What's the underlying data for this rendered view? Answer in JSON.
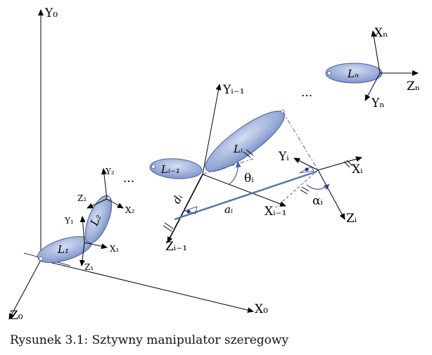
{
  "caption": "Rysunek 3.1: Sztywny manipulator szeregowy",
  "colors": {
    "link_fill": "#8ea4d6",
    "link_stroke": "#4a5f9a",
    "joint_axis": "#5a75a8",
    "dashed": "#4a5fa8",
    "marker": "#1f2f9a"
  },
  "labels": {
    "base": {
      "y": "Y₀",
      "x": "X₀",
      "z": "Z₀"
    },
    "frame1": {
      "y": "Y₁",
      "x": "X₁",
      "z": "Z₁",
      "link": "L₁"
    },
    "frame2": {
      "y": "Y₂",
      "x": "X₂",
      "z": "Z₂",
      "link": "L₂"
    },
    "prev": {
      "y": "Yᵢ₋₁",
      "x": "Xᵢ₋₁",
      "z": "Zᵢ₋₁",
      "link": "Lᵢ₋₁"
    },
    "curr": {
      "y": "Yᵢ",
      "x": "Xᵢ",
      "z": "Zᵢ",
      "link": "Lᵢ"
    },
    "last": {
      "y": "Yₙ",
      "x": "Xₙ",
      "z": "Zₙ",
      "link": "Lₙ"
    },
    "params": {
      "d": "dᵢ",
      "a": "aᵢ",
      "theta": "θᵢ",
      "alpha": "αᵢ"
    },
    "ellipsis": "···"
  }
}
